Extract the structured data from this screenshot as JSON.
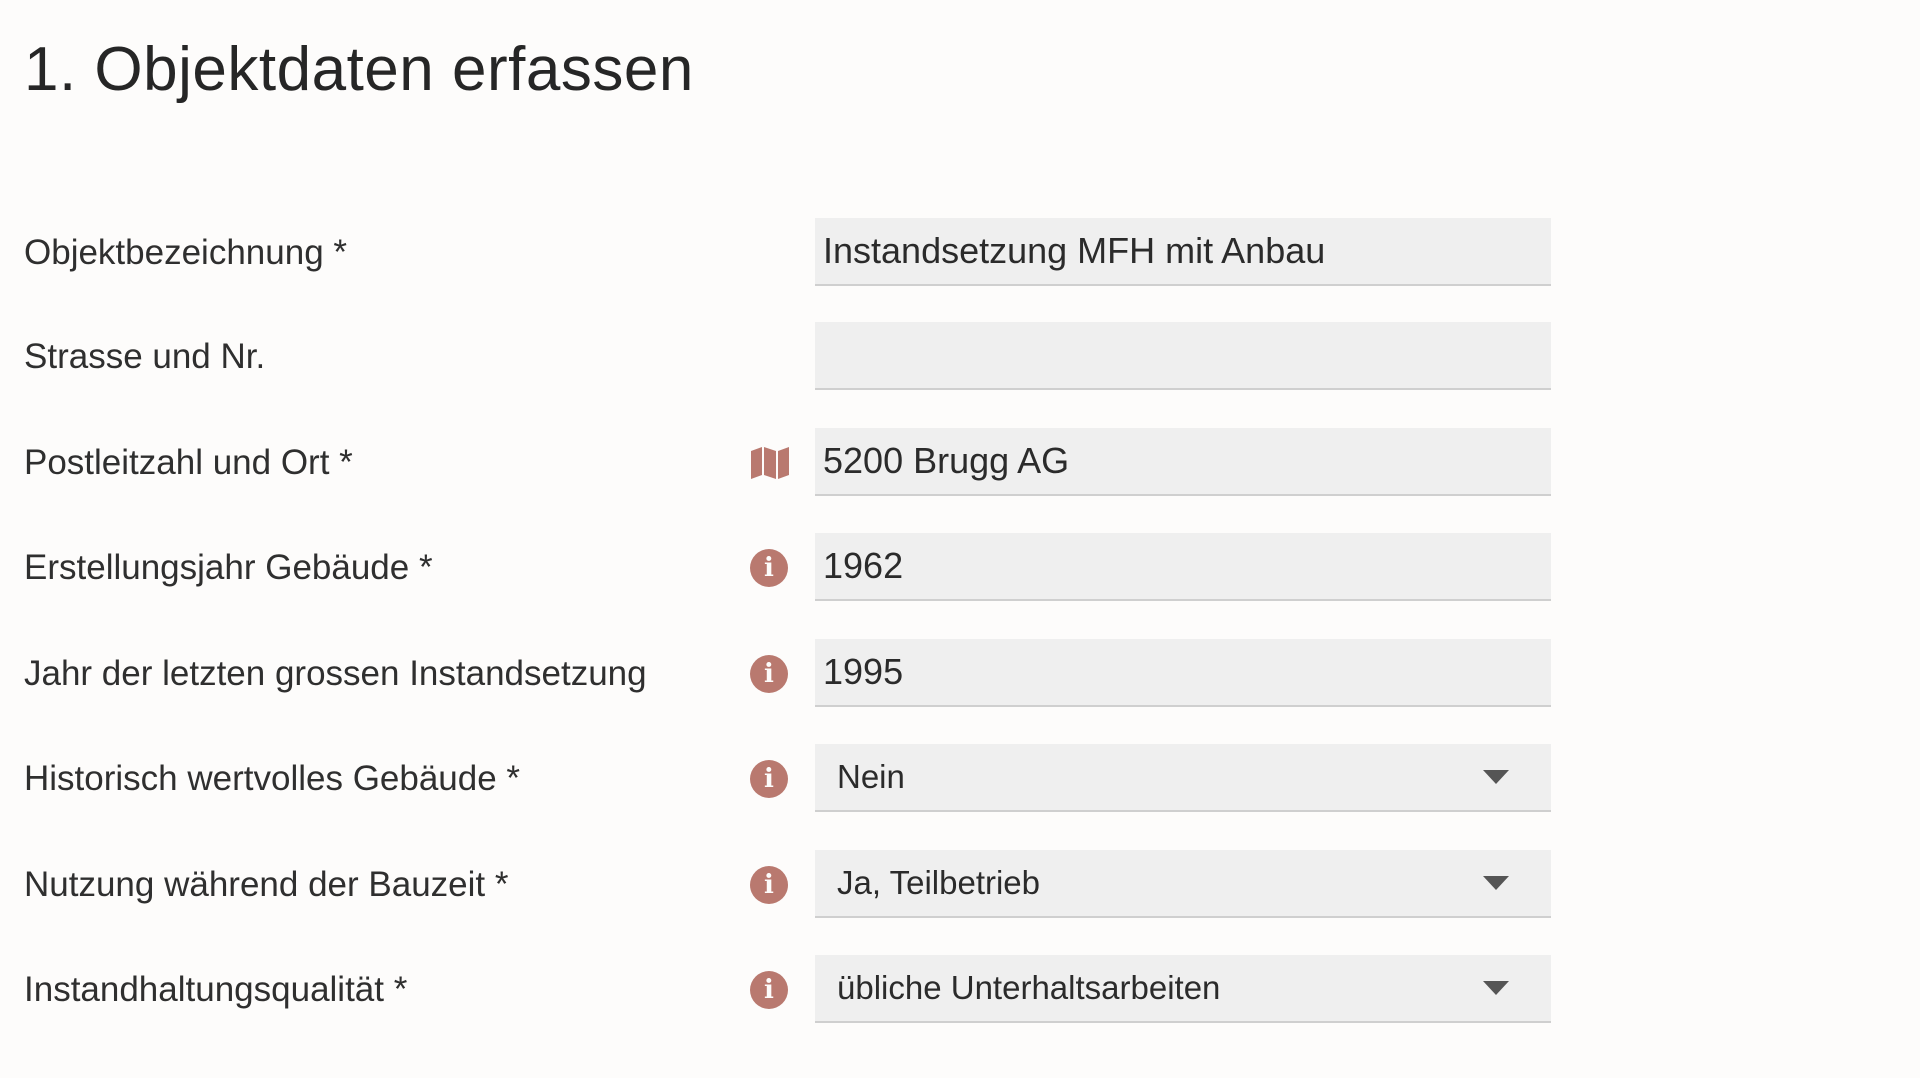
{
  "page": {
    "title": "1. Objektdaten erfassen"
  },
  "colors": {
    "background": "#fdfcfb",
    "field_background": "#efefef",
    "field_border": "#cfcfcf",
    "icon_accent": "#b9796f",
    "text": "#2b2b2b"
  },
  "form": {
    "object_name": {
      "label": "Objektbezeichnung *",
      "value": "Instandsetzung MFH mit Anbau"
    },
    "street": {
      "label": "Strasse und Nr.",
      "value": ""
    },
    "postal_city": {
      "label": "Postleitzahl und Ort *",
      "icon": "map-icon",
      "value": "5200 Brugg AG"
    },
    "construction_year": {
      "label": "Erstellungsjahr Gebäude *",
      "icon": "info-icon",
      "value": "1962"
    },
    "last_renovation_year": {
      "label": "Jahr der letzten grossen Instandsetzung",
      "icon": "info-icon",
      "value": "1995"
    },
    "historic_building": {
      "label": "Historisch wertvolles Gebäude *",
      "icon": "info-icon",
      "selected": "Nein"
    },
    "use_during_construction": {
      "label": "Nutzung während der Bauzeit *",
      "icon": "info-icon",
      "selected": "Ja, Teilbetrieb"
    },
    "maintenance_quality": {
      "label": "Instandhaltungsqualität *",
      "icon": "info-icon",
      "selected": "übliche Unterhaltsarbeiten"
    }
  }
}
